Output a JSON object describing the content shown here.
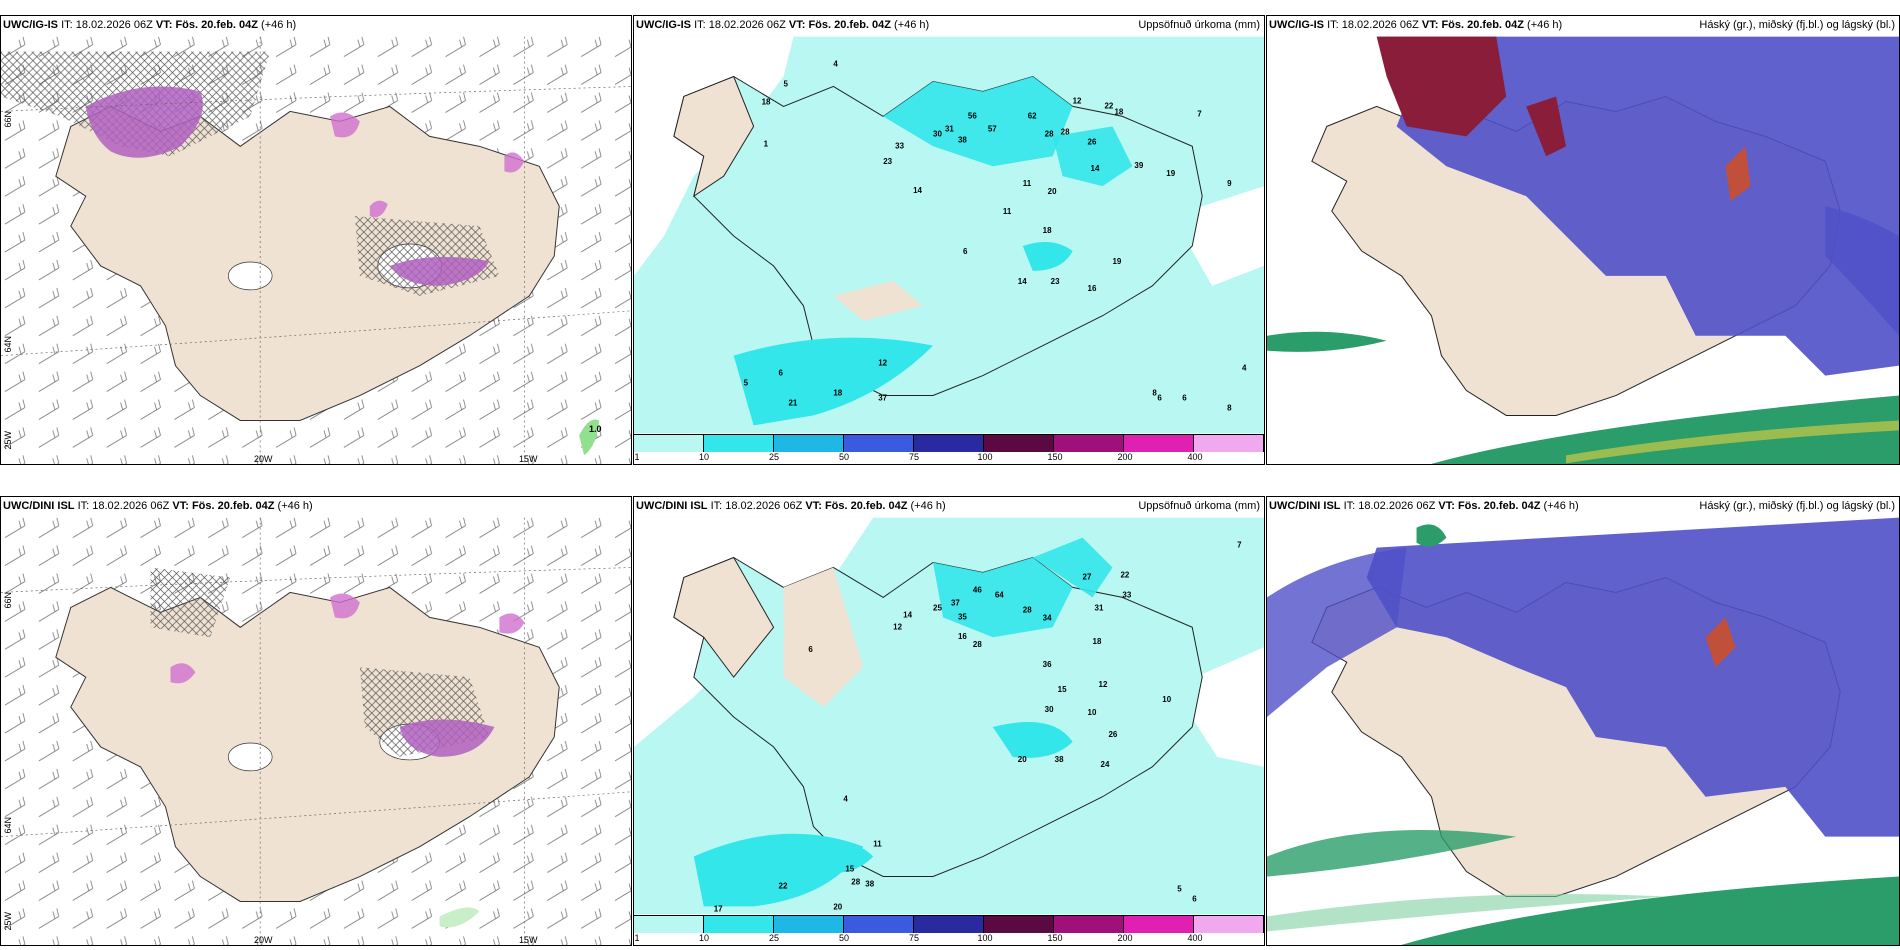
{
  "colors": {
    "land": "#efe2d2",
    "sea": "#ffffff",
    "precip_light": "#b8f7f2",
    "precip_mid": "#33e6ea",
    "snow_purple": "#b060c0",
    "cloud_high": "#8a1e3a",
    "cloud_mid": "#5050c8",
    "cloud_low": "#2a9d6a"
  },
  "rows": [
    {
      "left": {
        "model": "UWC/IG-IS",
        "it_label": "IT:",
        "it_value": "18.02.2026 06Z",
        "vt_label": "VT:",
        "vt_value": "Fös. 20.feb. 04Z",
        "lead": "(+46 h)"
      },
      "mid": {
        "model": "UWC/IG-IS",
        "it_label": "IT:",
        "it_value": "18.02.2026 06Z",
        "vt_label": "VT:",
        "vt_value": "Fös. 20.feb. 04Z",
        "lead": "(+46 h)",
        "right_title": "Uppsöfnuð úrkoma (mm)"
      },
      "right": {
        "model": "UWC/IG-IS",
        "it_label": "IT:",
        "it_value": "18.02.2026 06Z",
        "vt_label": "VT:",
        "vt_value": "Fös. 20.feb. 04Z",
        "lead": "(+46 h)",
        "right_title": "Háský (gr.), miðský (fj.bl.) og lágský (bl.)"
      }
    },
    {
      "left": {
        "model": "UWC/DINI ISL",
        "it_label": "IT:",
        "it_value": "18.02.2026 06Z",
        "vt_label": "VT:",
        "vt_value": "Fös. 20.feb. 04Z",
        "lead": "(+46 h)"
      },
      "mid": {
        "model": "UWC/DINI ISL",
        "it_label": "IT:",
        "it_value": "18.02.2026 06Z",
        "vt_label": "VT:",
        "vt_value": "Fös. 20.feb. 04Z",
        "lead": "(+46 h)",
        "right_title": "Uppsöfnuð úrkoma (mm)"
      },
      "right": {
        "model": "UWC/DINI ISL",
        "it_label": "IT:",
        "it_value": "18.02.2026 06Z",
        "vt_label": "VT:",
        "vt_value": "Fös. 20.feb. 04Z",
        "lead": "(+46 h)",
        "right_title": "Háský (gr.), miðský (fj.bl.) og lágský (bl.)"
      }
    }
  ],
  "axis_labels": {
    "lon_20w": "20W",
    "lon_15w": "15W",
    "lat_66n": "66N",
    "lat_64n": "64N",
    "lon_25w": "25W",
    "max_label": "1.0"
  },
  "precip_scale": [
    "1",
    "10",
    "25",
    "50",
    "75",
    "100",
    "150",
    "200",
    "400"
  ],
  "precip_scale_colors": [
    "#b8f7f2",
    "#33e6ea",
    "#1fb7e6",
    "#3a5be0",
    "#2a2aa0",
    "#5a0a40",
    "#a0107a",
    "#e020b0",
    "#f0a8ef"
  ],
  "precip_values_top": [
    "4",
    "5",
    "18",
    "1",
    "23",
    "33",
    "56",
    "62",
    "12",
    "22",
    "18",
    "30",
    "31",
    "38",
    "57",
    "28",
    "28",
    "26",
    "14",
    "14",
    "20",
    "39",
    "19",
    "11",
    "11",
    "18",
    "6",
    "19",
    "14",
    "23",
    "16",
    "12",
    "37",
    "21",
    "18",
    "5",
    "6",
    "8",
    "9",
    "7",
    "6",
    "8",
    "4",
    "6"
  ],
  "precip_values_bottom": [
    "14",
    "12",
    "25",
    "37",
    "46",
    "64",
    "27",
    "33",
    "22",
    "35",
    "28",
    "34",
    "31",
    "18",
    "28",
    "16",
    "36",
    "15",
    "12",
    "30",
    "10",
    "26",
    "20",
    "38",
    "24",
    "10",
    "11",
    "15",
    "28",
    "38",
    "22",
    "20",
    "17",
    "6",
    "5",
    "4",
    "6",
    "7"
  ]
}
